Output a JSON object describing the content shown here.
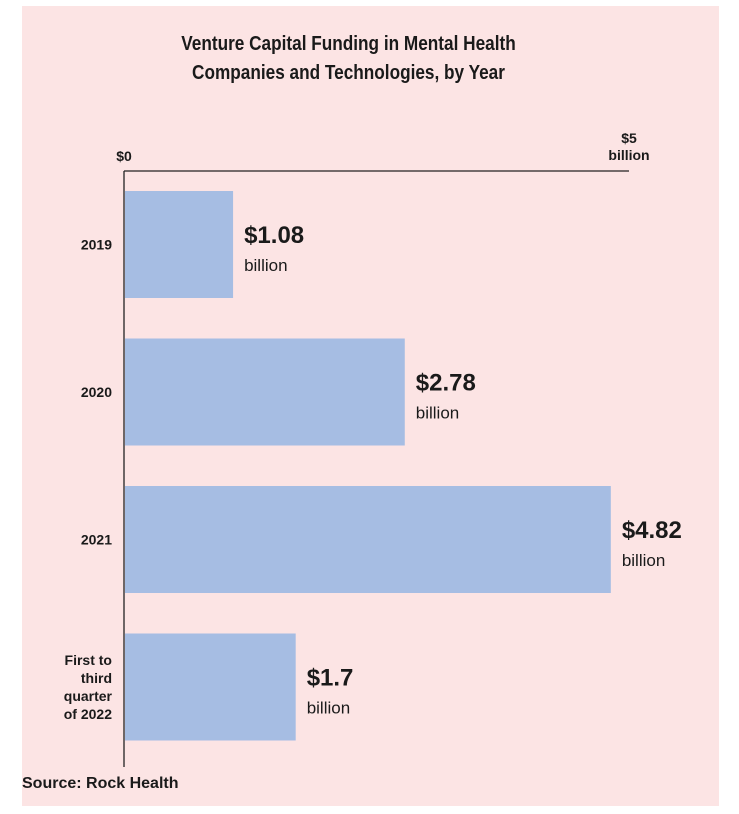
{
  "chart_data": {
    "type": "bar",
    "orientation": "horizontal",
    "title_lines": [
      "Venture Capital Funding in Mental Health",
      "Companies and Technologies, by Year"
    ],
    "categories": [
      [
        "2019"
      ],
      [
        "2020"
      ],
      [
        "2021"
      ],
      [
        "First to",
        "third",
        "quarter",
        "of 2022"
      ]
    ],
    "values": [
      1.08,
      2.78,
      4.82,
      1.7
    ],
    "value_labels": [
      "$1.08",
      "$2.78",
      "$4.82",
      "$1.7"
    ],
    "value_unit": "billion",
    "xlim": [
      0,
      5
    ],
    "axis_labels": {
      "min": "$0",
      "max": "$5",
      "max_unit": "billion"
    },
    "colors": {
      "bar": "#a6bde3",
      "background": "#fce4e4",
      "axis": "#222222",
      "text": "#1a1a1a"
    },
    "grid": false,
    "legend": "none"
  },
  "source": "Source: Rock Health"
}
